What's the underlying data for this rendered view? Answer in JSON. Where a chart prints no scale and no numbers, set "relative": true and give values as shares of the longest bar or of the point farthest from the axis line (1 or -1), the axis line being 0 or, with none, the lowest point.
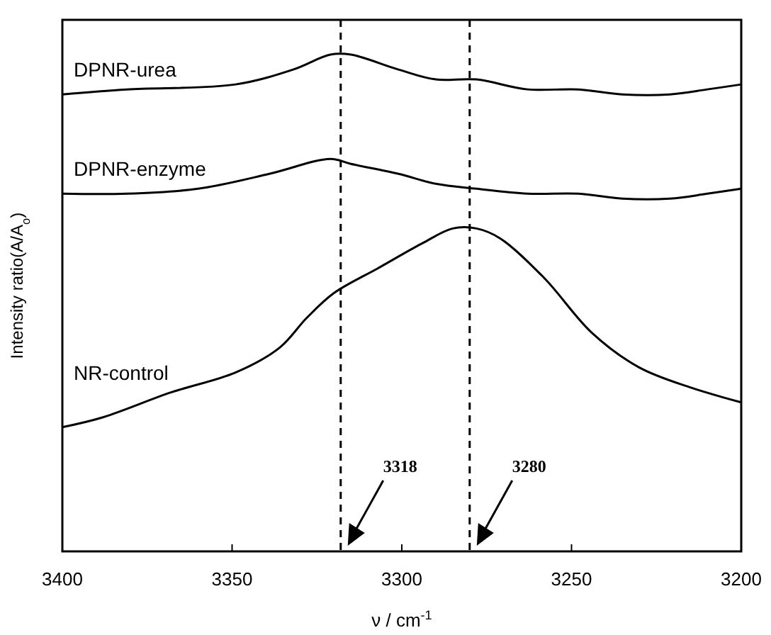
{
  "chart_data": {
    "type": "line",
    "relative": true,
    "xlabel": "ν / cm$^{-1}$",
    "ylabel": "Intensity ratio(A/A$_{o}$)",
    "xlim": [
      3400,
      3200
    ],
    "xticks": [
      3400,
      3350,
      3300,
      3250,
      3200
    ],
    "grid": false,
    "marker": "none",
    "line_style": "solid",
    "series": [
      {
        "name": "DPNR-urea",
        "color": "#000000",
        "x": [
          3400,
          3381,
          3349,
          3332,
          3321,
          3315,
          3301,
          3290,
          3278,
          3263,
          3248,
          3235,
          3221,
          3210,
          3200
        ],
        "values": [
          0.92,
          0.93,
          0.94,
          0.97,
          1.0,
          1.0,
          0.97,
          0.95,
          0.95,
          0.93,
          0.93,
          0.92,
          0.92,
          0.93,
          0.94
        ]
      },
      {
        "name": "DPNR-enzyme",
        "color": "#000000",
        "x": [
          3400,
          3381,
          3360,
          3339,
          3321,
          3315,
          3301,
          3290,
          3278,
          3263,
          3248,
          3235,
          3221,
          3210,
          3200
        ],
        "values": [
          0.72,
          0.72,
          0.73,
          0.76,
          0.79,
          0.78,
          0.76,
          0.74,
          0.73,
          0.72,
          0.72,
          0.71,
          0.71,
          0.72,
          0.73
        ]
      },
      {
        "name": "NR-control",
        "color": "#000000",
        "x": [
          3400,
          3388,
          3368,
          3349,
          3336,
          3328,
          3320,
          3307,
          3294,
          3285,
          3278,
          3271,
          3258,
          3244,
          3230,
          3215,
          3200
        ],
        "values": [
          0.25,
          0.27,
          0.32,
          0.36,
          0.41,
          0.47,
          0.52,
          0.57,
          0.62,
          0.65,
          0.65,
          0.63,
          0.55,
          0.44,
          0.37,
          0.33,
          0.3
        ]
      }
    ],
    "ref_lines": [
      {
        "axis": "x",
        "value": 3318,
        "label": "3318",
        "line_style": "dashed",
        "color": "#000000"
      },
      {
        "axis": "x",
        "value": 3280,
        "label": "3280",
        "line_style": "dashed",
        "color": "#000000"
      }
    ]
  }
}
